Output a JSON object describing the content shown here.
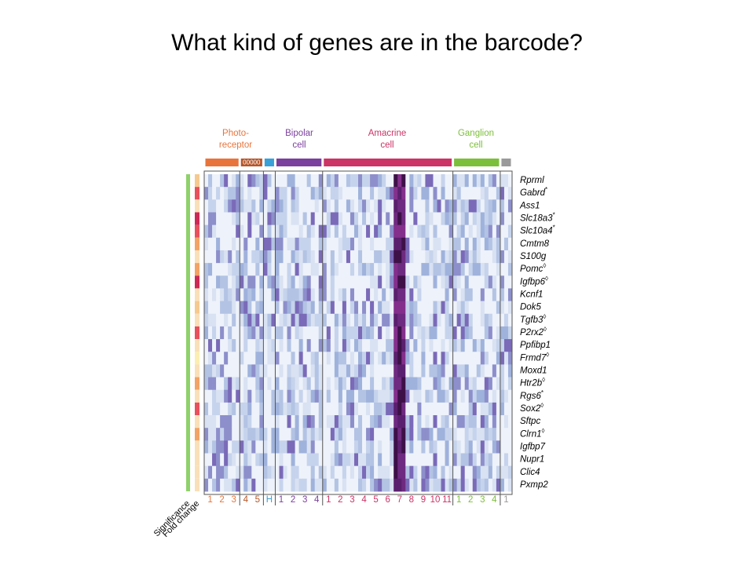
{
  "title": "What kind of genes are in the barcode?",
  "figure": {
    "groups": [
      {
        "lines": [
          "Photo-",
          "receptor"
        ],
        "color": "#e8743b",
        "columns": [
          "1",
          "2",
          "3"
        ]
      },
      {
        "color": "#b5562a",
        "tag": "00000",
        "columns": [
          "4",
          "5"
        ]
      },
      {
        "color": "#3aa0d8",
        "columns": [
          "H"
        ]
      },
      {
        "lines": [
          "Bipolar",
          "cell"
        ],
        "color": "#7b3f9e",
        "columns": [
          "1",
          "2",
          "3",
          "4"
        ]
      },
      {
        "lines": [
          "Amacrine",
          "cell"
        ],
        "color": "#cc3366",
        "columns": [
          "1",
          "2",
          "3",
          "4",
          "5",
          "6",
          "7",
          "8",
          "9",
          "10",
          "11"
        ]
      },
      {
        "lines": [
          "Ganglion",
          "cell"
        ],
        "color": "#7cbf3a",
        "columns": [
          "1",
          "2",
          "3",
          "4"
        ]
      },
      {
        "color": "#9a9a9a",
        "columns": [
          "1"
        ]
      }
    ],
    "genes": [
      {
        "name": "Rprml",
        "fold_color": "#f6c98f"
      },
      {
        "name": "Gabrd",
        "mark": "*",
        "fold_color": "#e8505b"
      },
      {
        "name": "Ass1",
        "fold_color": "#f9e0b8"
      },
      {
        "name": "Slc18a3",
        "mark": "*",
        "fold_color": "#cc2a55"
      },
      {
        "name": "Slc10a4",
        "mark": "*",
        "fold_color": "#e8505b"
      },
      {
        "name": "Cmtm8",
        "fold_color": "#f2a365"
      },
      {
        "name": "S100g",
        "fold_color": "#f9e0b8"
      },
      {
        "name": "Pomc",
        "mark": "◊",
        "fold_color": "#f2a365"
      },
      {
        "name": "Igfbp6",
        "mark": "◊",
        "fold_color": "#cc2a55"
      },
      {
        "name": "Kcnf1",
        "fold_color": "#f9e0b8"
      },
      {
        "name": "Dok5",
        "fold_color": "#f6c98f"
      },
      {
        "name": "Tgfb3",
        "mark": "◊",
        "fold_color": "#f9e0b8"
      },
      {
        "name": "P2rx2",
        "mark": "◊",
        "fold_color": "#e8505b"
      },
      {
        "name": "Ppfibp1",
        "fold_color": "#f9e0b8"
      },
      {
        "name": "Frmd7",
        "mark": "◊",
        "fold_color": "#fbeeb0"
      },
      {
        "name": "Moxd1",
        "fold_color": "#f9e0b8"
      },
      {
        "name": "Htr2b",
        "mark": "◊",
        "fold_color": "#f2a365"
      },
      {
        "name": "Rgs6",
        "mark": "*",
        "fold_color": "#f9e0b8"
      },
      {
        "name": "Sox2",
        "mark": "◊",
        "fold_color": "#e8505b"
      },
      {
        "name": "Sftpc",
        "fold_color": "#f9e0b8"
      },
      {
        "name": "Clrn1",
        "mark": "◊",
        "fold_color": "#f2a365"
      },
      {
        "name": "Igfbp7",
        "fold_color": "#f9e0b8"
      },
      {
        "name": "Nupr1",
        "fold_color": "#f9e0b8"
      },
      {
        "name": "Clic4",
        "fold_color": "#f9e0b8"
      },
      {
        "name": "Pxmp2",
        "fold_color": "#f9e0b8"
      }
    ],
    "significance_color": "#8fd16a",
    "side_labels": [
      "Significance",
      "Fold change"
    ]
  }
}
